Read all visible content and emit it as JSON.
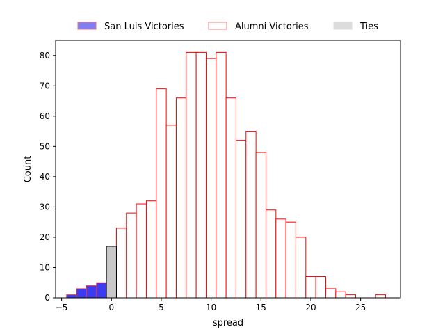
{
  "chart_data": {
    "type": "bar",
    "title": "",
    "xlabel": "spread",
    "ylabel": "Count",
    "xlim": [
      -5.6,
      29.0
    ],
    "ylim": [
      0,
      85
    ],
    "xticks": [
      -5,
      0,
      5,
      10,
      15,
      20,
      25
    ],
    "yticks": [
      0,
      10,
      20,
      30,
      40,
      50,
      60,
      70,
      80
    ],
    "bin_width": 1,
    "grid": false,
    "legend_position": "top-center",
    "series": [
      {
        "name": "San Luis Victories",
        "style": "filled",
        "fill": "#3b3bf2",
        "edge": "#e0363a",
        "legend_fill": "#7f7ff5",
        "legend_edge": "#f07070",
        "bins": [
          {
            "start": -4.5,
            "count": 1
          },
          {
            "start": -3.5,
            "count": 3
          },
          {
            "start": -2.5,
            "count": 4
          },
          {
            "start": -1.5,
            "count": 5
          }
        ]
      },
      {
        "name": "Alumni Victories",
        "style": "outline",
        "fill": "#ffffff",
        "edge": "#ff0000",
        "legend_fill": "#ffffff",
        "legend_edge": "#f08080",
        "bins": [
          {
            "start": 0.5,
            "count": 23
          },
          {
            "start": 1.5,
            "count": 28
          },
          {
            "start": 2.5,
            "count": 31
          },
          {
            "start": 3.5,
            "count": 32
          },
          {
            "start": 4.5,
            "count": 69
          },
          {
            "start": 5.5,
            "count": 57
          },
          {
            "start": 6.5,
            "count": 66
          },
          {
            "start": 7.5,
            "count": 81
          },
          {
            "start": 8.5,
            "count": 81
          },
          {
            "start": 9.5,
            "count": 79
          },
          {
            "start": 10.5,
            "count": 81
          },
          {
            "start": 11.5,
            "count": 66
          },
          {
            "start": 12.5,
            "count": 52
          },
          {
            "start": 13.5,
            "count": 55
          },
          {
            "start": 14.5,
            "count": 48
          },
          {
            "start": 15.5,
            "count": 29
          },
          {
            "start": 16.5,
            "count": 26
          },
          {
            "start": 17.5,
            "count": 25
          },
          {
            "start": 18.5,
            "count": 20
          },
          {
            "start": 19.5,
            "count": 7
          },
          {
            "start": 20.5,
            "count": 7
          },
          {
            "start": 21.5,
            "count": 3
          },
          {
            "start": 22.5,
            "count": 2
          },
          {
            "start": 23.5,
            "count": 1
          },
          {
            "start": 24.5,
            "count": 0
          },
          {
            "start": 25.5,
            "count": 0
          },
          {
            "start": 26.5,
            "count": 1
          }
        ]
      },
      {
        "name": "Ties",
        "style": "filled",
        "fill": "#c8c8c8",
        "edge": "#000000",
        "legend_fill": "#dcdcdc",
        "legend_edge": "#dcdcdc",
        "bins": [
          {
            "start": -0.5,
            "count": 17
          }
        ]
      }
    ]
  }
}
